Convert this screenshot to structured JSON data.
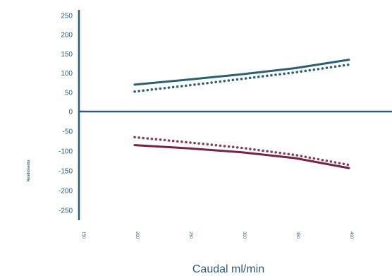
{
  "chart_data": {
    "type": "line",
    "title": "",
    "xlabel": "Caudal ml/min",
    "ylabel": "Rendimiento",
    "x_ticks": [
      "150",
      "200",
      "250",
      "300",
      "350",
      "400"
    ],
    "y_ticks": [
      "250",
      "200",
      "150",
      "100",
      "50",
      "0",
      "-50",
      "-100",
      "-150",
      "-200",
      "-250"
    ],
    "xlim": [
      150,
      400
    ],
    "ylim": [
      -280,
      260
    ],
    "grid": false,
    "legend": "none",
    "series": [
      {
        "style": "solid",
        "color": "#2b5f75",
        "x": [
          200,
          250,
          300,
          350,
          400
        ],
        "y": [
          70,
          83,
          97,
          113,
          135
        ]
      },
      {
        "style": "dotted",
        "color": "#2b5f75",
        "x": [
          200,
          250,
          300,
          350,
          400
        ],
        "y": [
          52,
          68,
          85,
          102,
          122
        ]
      },
      {
        "style": "solid",
        "color": "#7a1f45",
        "x": [
          200,
          250,
          300,
          350,
          400
        ],
        "y": [
          -85,
          -93,
          -103,
          -118,
          -143
        ]
      },
      {
        "style": "dotted",
        "color": "#8a3a55",
        "x": [
          200,
          250,
          300,
          350,
          400
        ],
        "y": [
          -65,
          -78,
          -92,
          -110,
          -135
        ]
      }
    ]
  }
}
